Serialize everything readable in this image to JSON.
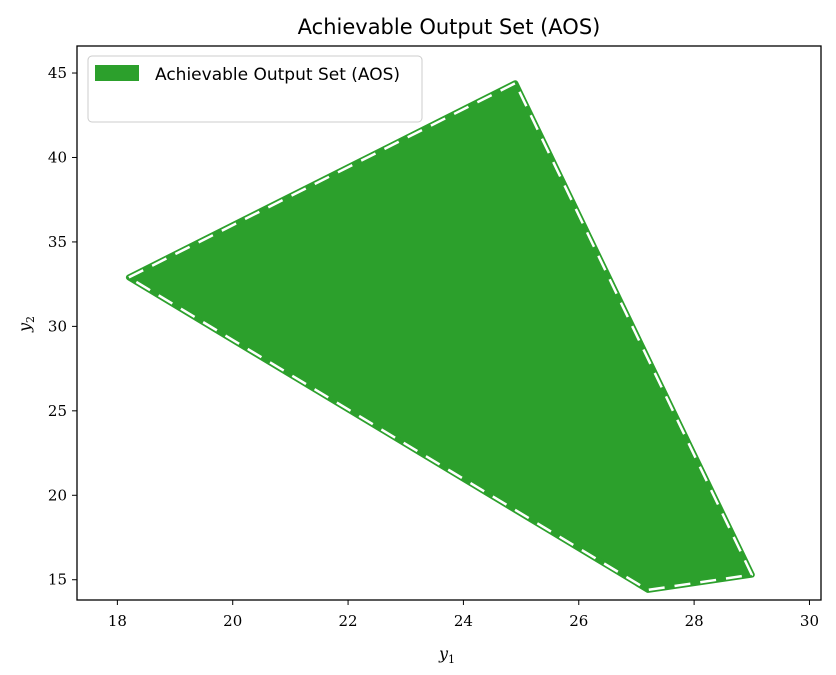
{
  "chart_data": {
    "type": "area",
    "title": "Achievable Output Set (AOS)",
    "xlabel": "y",
    "xlabel_sub": "1",
    "ylabel": "y",
    "ylabel_sub": "2",
    "xlim": [
      17.3,
      30.2
    ],
    "ylim": [
      13.8,
      46.6
    ],
    "xticks": [
      18,
      20,
      22,
      24,
      26,
      28,
      30
    ],
    "yticks": [
      15,
      20,
      25,
      30,
      35,
      40,
      45
    ],
    "grid": false,
    "legend_position": "top-left",
    "series": [
      {
        "name": "Achievable Output Set (AOS)",
        "color": "#2ca02c",
        "edge_style": "dashed",
        "edge_color": "#ffffff",
        "polygon": [
          {
            "x": 18.2,
            "y": 32.9
          },
          {
            "x": 24.9,
            "y": 44.4
          },
          {
            "x": 29.0,
            "y": 15.3
          },
          {
            "x": 27.2,
            "y": 14.4
          }
        ]
      }
    ]
  }
}
